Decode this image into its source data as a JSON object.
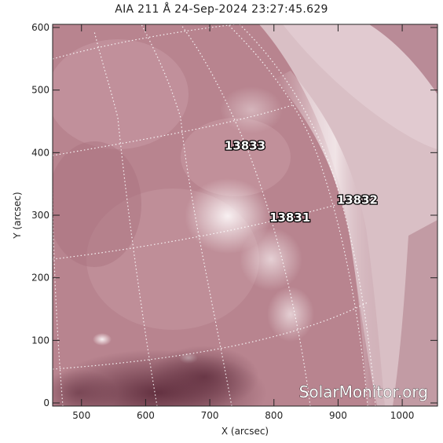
{
  "image": {
    "title": "AIA 211 Å 24-Sep-2024 23:27:45.629",
    "x_axis": {
      "label": "X (arcsec)",
      "range": [
        455,
        1055
      ],
      "ticks": [
        500,
        600,
        700,
        800,
        900,
        1000
      ]
    },
    "y_axis": {
      "label": "Y (arcsec)",
      "range": [
        -5,
        605
      ],
      "ticks": [
        0,
        100,
        200,
        300,
        400,
        500,
        600
      ]
    },
    "active_regions": [
      {
        "label": "13833",
        "x": 755,
        "y": 405
      },
      {
        "label": "13831",
        "x": 825,
        "y": 290
      },
      {
        "label": "13832",
        "x": 930,
        "y": 318
      }
    ],
    "watermark": "SolarMonitor.org",
    "colors": {
      "disk": "#b98995",
      "bright": "#efe3e6",
      "dark": "#6f3848",
      "grid": "#ffffff"
    }
  }
}
